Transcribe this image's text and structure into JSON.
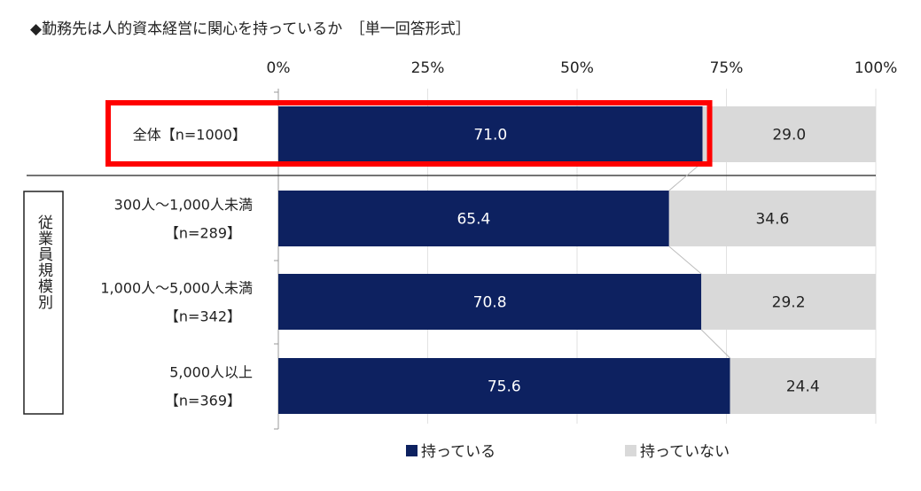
{
  "chart_data": {
    "type": "bar",
    "orientation": "horizontal",
    "stacked": "100%",
    "title": "◆勤務先は人的資本経営に関心を持っているか　［単一回答形式］",
    "x_ticks": [
      "0%",
      "25%",
      "50%",
      "75%",
      "100%"
    ],
    "xlim": [
      0,
      100
    ],
    "categories": [
      {
        "line1": "全体【n=1000】",
        "line2": ""
      },
      {
        "line1": "300人～1,000人未満",
        "line2": "【n=289】"
      },
      {
        "line1": "1,000人～5,000人未満",
        "line2": "【n=342】"
      },
      {
        "line1": "5,000人以上",
        "line2": "【n=369】"
      }
    ],
    "group_label": "従業員規模別",
    "series": [
      {
        "name": "持っている",
        "color": "#0d2160",
        "text_color": "#ffffff",
        "values": [
          71.0,
          65.4,
          70.8,
          75.6
        ]
      },
      {
        "name": "持っていない",
        "color": "#d9d9d9",
        "text_color": "#222222",
        "values": [
          29.0,
          34.6,
          29.2,
          24.4
        ]
      }
    ],
    "value_labels": [
      [
        "71.0",
        "65.4",
        "70.8",
        "75.6"
      ],
      [
        "29.0",
        "34.6",
        "29.2",
        "24.4"
      ]
    ],
    "highlight": {
      "category_index": 0,
      "color": "#ff0000"
    },
    "legend_position": "bottom",
    "grid": true
  }
}
